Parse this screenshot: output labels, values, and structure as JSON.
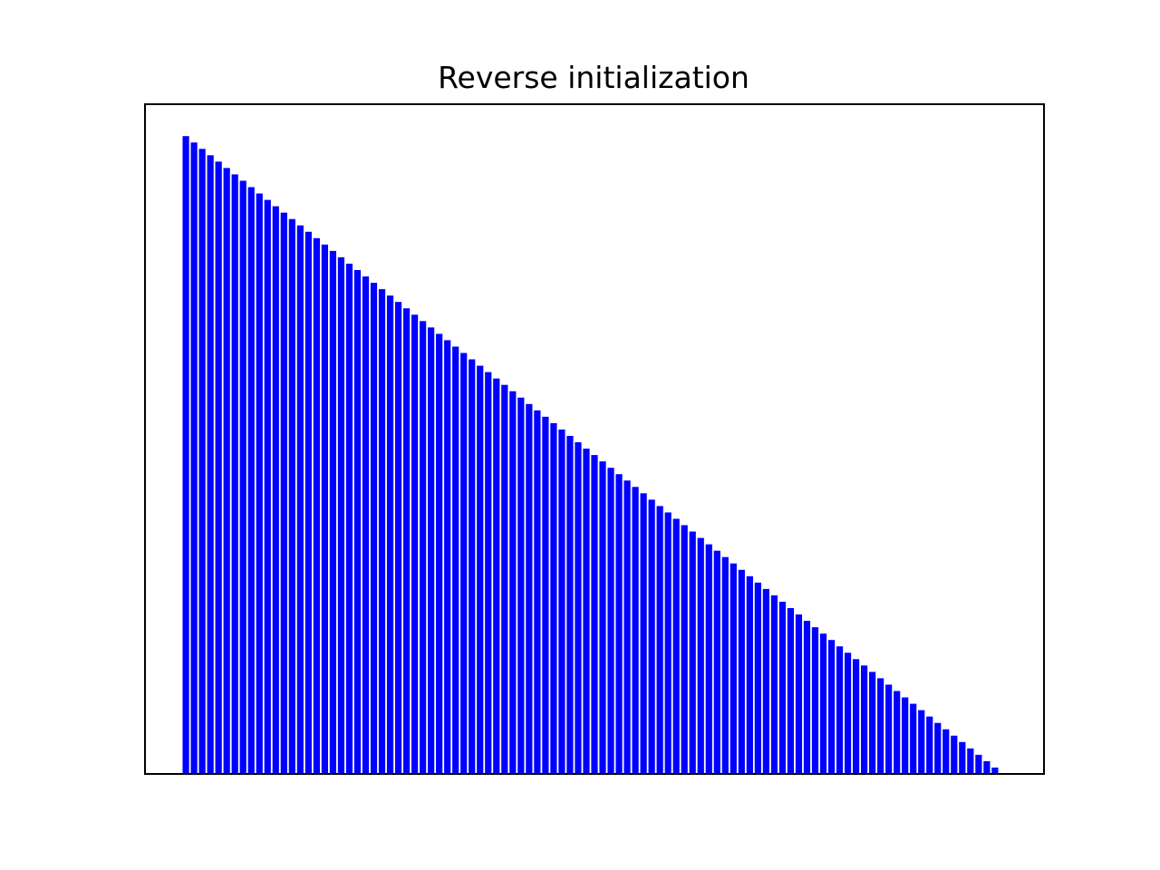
{
  "chart_data": {
    "type": "bar",
    "title": "Reverse initialization",
    "xlabel": "",
    "ylabel": "",
    "axes_visible": false,
    "grid": false,
    "bar_color": "#0000ff",
    "x_start": 0,
    "values": [
      100,
      99,
      98,
      97,
      96,
      95,
      94,
      93,
      92,
      91,
      90,
      89,
      88,
      87,
      86,
      85,
      84,
      83,
      82,
      81,
      80,
      79,
      78,
      77,
      76,
      75,
      74,
      73,
      72,
      71,
      70,
      69,
      68,
      67,
      66,
      65,
      64,
      63,
      62,
      61,
      60,
      59,
      58,
      57,
      56,
      55,
      54,
      53,
      52,
      51,
      50,
      49,
      48,
      47,
      46,
      45,
      44,
      43,
      42,
      41,
      40,
      39,
      38,
      37,
      36,
      35,
      34,
      33,
      32,
      31,
      30,
      29,
      28,
      27,
      26,
      25,
      24,
      23,
      22,
      21,
      20,
      19,
      18,
      17,
      16,
      15,
      14,
      13,
      12,
      11,
      10,
      9,
      8,
      7,
      6,
      5,
      4,
      3,
      2,
      1
    ],
    "xlim": [
      -5,
      105
    ],
    "ylim": [
      0,
      105
    ]
  }
}
